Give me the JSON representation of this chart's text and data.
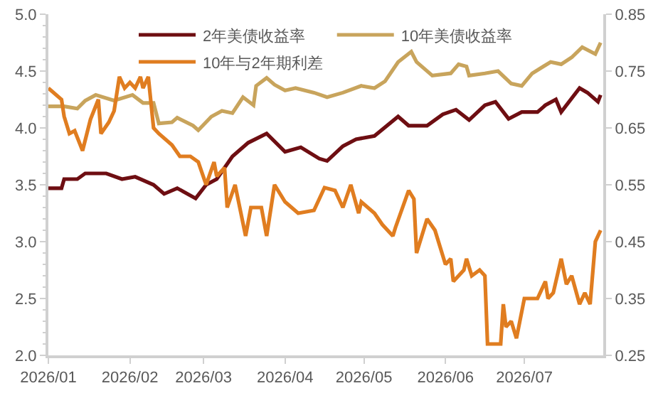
{
  "chart_data": {
    "type": "line",
    "legend": "top",
    "grid": false,
    "marker": "none",
    "line_style": "solid",
    "xlim": [
      "2026-01-01",
      "2026-07-31"
    ],
    "xticks": [
      {
        "value": "2026-01-01",
        "label": "2026/01"
      },
      {
        "value": "2026-02-01",
        "label": "2026/02"
      },
      {
        "value": "2026-03-01",
        "label": "2026/03"
      },
      {
        "value": "2026-04-01",
        "label": "2026/04"
      },
      {
        "value": "2026-05-01",
        "label": "2026/05"
      },
      {
        "value": "2026-06-01",
        "label": "2026/06"
      },
      {
        "value": "2026-07-01",
        "label": "2026/07"
      }
    ],
    "ylim": [
      2.0,
      5.0
    ],
    "yticks": [
      {
        "value": 2,
        "label": "2.0"
      },
      {
        "value": 2.5,
        "label": "2.5"
      },
      {
        "value": 3,
        "label": "3.0"
      },
      {
        "value": 3.5,
        "label": "3.5"
      },
      {
        "value": 4,
        "label": "4.0"
      },
      {
        "value": 4.5,
        "label": "4.5"
      },
      {
        "value": 5,
        "label": "5.0"
      }
    ],
    "y2lim": [
      0.25,
      0.85
    ],
    "y2ticks": [
      0.25,
      0.35,
      0.45,
      0.55,
      0.65,
      0.75,
      0.85
    ],
    "series": [
      {
        "name": "2年美债收益率",
        "color": "#6e0e12",
        "x": [
          "2026-01-01",
          "2026-01-06",
          "2026-01-07",
          "2026-01-12",
          "2026-01-15",
          "2026-01-23",
          "2026-01-29",
          "2026-02-03",
          "2026-02-10",
          "2026-02-14",
          "2026-02-19",
          "2026-02-26",
          "2026-03-02",
          "2026-03-06",
          "2026-03-12",
          "2026-03-18",
          "2026-03-25",
          "2026-04-01",
          "2026-04-07",
          "2026-04-14",
          "2026-04-17",
          "2026-04-23",
          "2026-04-28",
          "2026-05-05",
          "2026-05-14",
          "2026-05-18",
          "2026-05-25",
          "2026-05-31",
          "2026-06-05",
          "2026-06-10",
          "2026-06-16",
          "2026-06-20",
          "2026-06-25",
          "2026-06-30",
          "2026-07-06",
          "2026-07-09",
          "2026-07-13",
          "2026-07-15",
          "2026-07-22",
          "2026-07-25",
          "2026-07-29",
          "2026-07-30"
        ],
        "values": [
          3.47,
          3.47,
          3.55,
          3.55,
          3.6,
          3.6,
          3.55,
          3.57,
          3.5,
          3.42,
          3.47,
          3.38,
          3.5,
          3.55,
          3.75,
          3.87,
          3.95,
          3.79,
          3.83,
          3.73,
          3.71,
          3.84,
          3.9,
          3.93,
          4.1,
          4.02,
          4.02,
          4.12,
          4.16,
          4.07,
          4.2,
          4.23,
          4.08,
          4.14,
          4.14,
          4.2,
          4.25,
          4.14,
          4.35,
          4.31,
          4.23,
          4.29
        ]
      },
      {
        "name": "10年美债收益率",
        "color": "#c8a45c",
        "x": [
          "2026-01-01",
          "2026-01-07",
          "2026-01-12",
          "2026-01-15",
          "2026-01-19",
          "2026-01-26",
          "2026-02-02",
          "2026-02-06",
          "2026-02-10",
          "2026-02-12",
          "2026-02-17",
          "2026-02-19",
          "2026-02-25",
          "2026-02-27",
          "2026-03-04",
          "2026-03-08",
          "2026-03-12",
          "2026-03-16",
          "2026-03-20",
          "2026-03-21",
          "2026-03-25",
          "2026-03-28",
          "2026-04-01",
          "2026-04-05",
          "2026-04-12",
          "2026-04-17",
          "2026-04-23",
          "2026-04-30",
          "2026-05-05",
          "2026-05-09",
          "2026-05-14",
          "2026-05-19",
          "2026-05-21",
          "2026-05-27",
          "2026-06-03",
          "2026-06-06",
          "2026-06-09",
          "2026-06-10",
          "2026-06-16",
          "2026-06-21",
          "2026-06-26",
          "2026-06-30",
          "2026-07-04",
          "2026-07-11",
          "2026-07-15",
          "2026-07-19",
          "2026-07-23",
          "2026-07-28",
          "2026-07-30"
        ],
        "values": [
          4.19,
          4.19,
          4.17,
          4.24,
          4.29,
          4.24,
          4.29,
          4.22,
          4.22,
          4.04,
          4.05,
          4.09,
          4.02,
          3.98,
          4.1,
          4.15,
          4.13,
          4.27,
          4.2,
          4.37,
          4.44,
          4.38,
          4.33,
          4.35,
          4.31,
          4.27,
          4.31,
          4.37,
          4.35,
          4.41,
          4.58,
          4.67,
          4.58,
          4.46,
          4.48,
          4.56,
          4.54,
          4.46,
          4.48,
          4.5,
          4.39,
          4.37,
          4.48,
          4.58,
          4.56,
          4.62,
          4.71,
          4.65,
          4.75
        ]
      },
      {
        "name": "10年与2年期利差",
        "color": "#e07d20",
        "axis": "y2",
        "x": [
          "2026-01-01",
          "2026-01-06",
          "2026-01-07",
          "2026-01-09",
          "2026-01-11",
          "2026-01-14",
          "2026-01-17",
          "2026-01-20",
          "2026-01-21",
          "2026-01-24",
          "2026-01-26",
          "2026-01-28",
          "2026-01-30",
          "2026-02-01",
          "2026-02-03",
          "2026-02-05",
          "2026-02-06",
          "2026-02-08",
          "2026-02-10",
          "2026-02-12",
          "2026-02-17",
          "2026-02-20",
          "2026-02-24",
          "2026-02-27",
          "2026-03-02",
          "2026-03-05",
          "2026-03-06",
          "2026-03-09",
          "2026-03-10",
          "2026-03-13",
          "2026-03-17",
          "2026-03-19",
          "2026-03-23",
          "2026-03-25",
          "2026-03-28",
          "2026-04-01",
          "2026-04-06",
          "2026-04-12",
          "2026-04-16",
          "2026-04-20",
          "2026-04-23",
          "2026-04-26",
          "2026-04-29",
          "2026-04-30",
          "2026-05-05",
          "2026-05-08",
          "2026-05-12",
          "2026-05-13",
          "2026-05-18",
          "2026-05-20",
          "2026-05-21",
          "2026-05-25",
          "2026-05-28",
          "2026-06-01",
          "2026-06-03",
          "2026-06-04",
          "2026-06-08",
          "2026-06-09",
          "2026-06-11",
          "2026-06-14",
          "2026-06-16",
          "2026-06-17",
          "2026-06-22",
          "2026-06-23",
          "2026-06-24",
          "2026-06-26",
          "2026-06-28",
          "2026-07-01",
          "2026-07-06",
          "2026-07-09",
          "2026-07-10",
          "2026-07-12",
          "2026-07-15",
          "2026-07-17",
          "2026-07-19",
          "2026-07-22",
          "2026-07-24",
          "2026-07-26",
          "2026-07-28",
          "2026-07-30"
        ],
        "values": [
          0.72,
          0.7,
          0.67,
          0.64,
          0.645,
          0.61,
          0.665,
          0.7,
          0.64,
          0.66,
          0.68,
          0.74,
          0.72,
          0.73,
          0.72,
          0.74,
          0.72,
          0.74,
          0.65,
          0.64,
          0.62,
          0.6,
          0.6,
          0.59,
          0.55,
          0.59,
          0.565,
          0.58,
          0.51,
          0.55,
          0.46,
          0.51,
          0.51,
          0.46,
          0.55,
          0.52,
          0.5,
          0.505,
          0.545,
          0.54,
          0.51,
          0.55,
          0.5,
          0.52,
          0.5,
          0.48,
          0.46,
          0.475,
          0.54,
          0.525,
          0.43,
          0.49,
          0.47,
          0.41,
          0.42,
          0.38,
          0.4,
          0.42,
          0.39,
          0.4,
          0.39,
          0.27,
          0.27,
          0.34,
          0.3,
          0.31,
          0.28,
          0.35,
          0.35,
          0.38,
          0.35,
          0.36,
          0.42,
          0.375,
          0.39,
          0.34,
          0.36,
          0.34,
          0.45,
          0.47
        ]
      }
    ]
  }
}
